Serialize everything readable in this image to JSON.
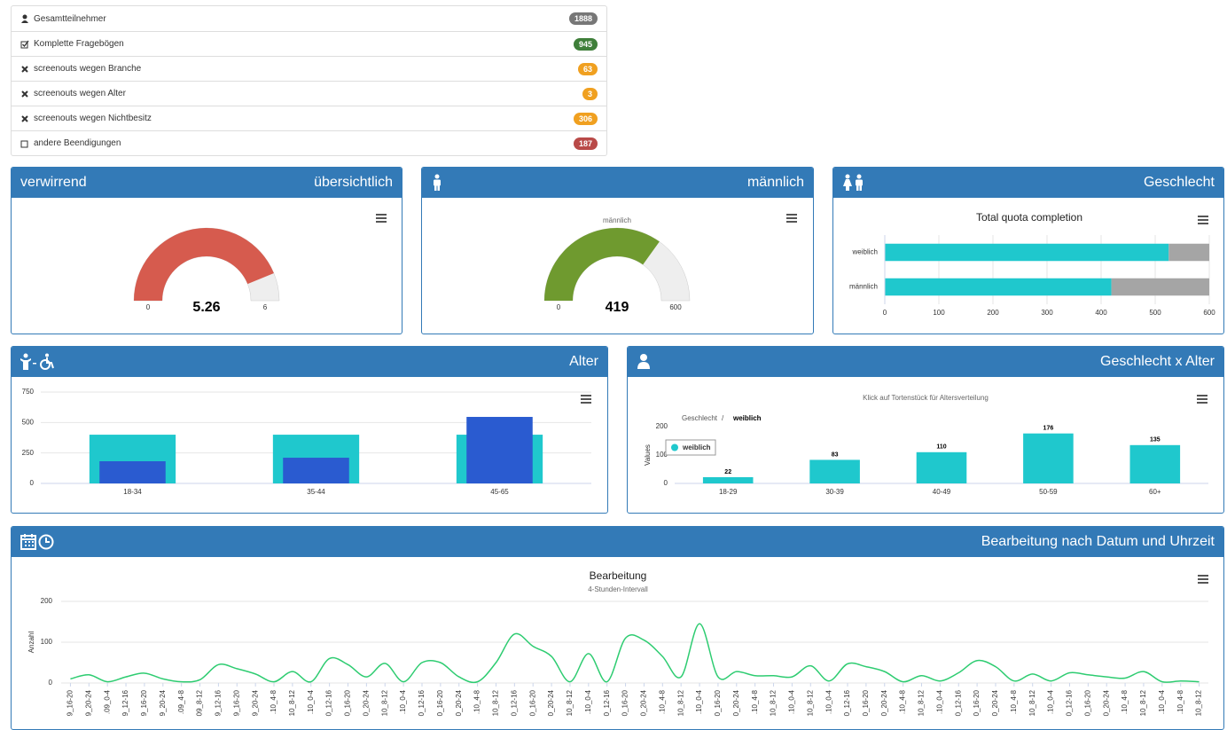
{
  "stats": [
    {
      "label": "Gesamtteilnehmer",
      "count": 1888,
      "color": "#777777"
    },
    {
      "label": "Komplette Fragebögen",
      "count": 945,
      "color": "#3f7f3a"
    },
    {
      "label": "screenouts wegen Branche",
      "count": 63,
      "color": "#f0a020"
    },
    {
      "label": "screenouts wegen Alter",
      "count": 3,
      "color": "#f0a020"
    },
    {
      "label": "screenouts wegen Nichtbesitz",
      "count": 306,
      "color": "#f0a020"
    },
    {
      "label": "andere Beendigungen",
      "count": 187,
      "color": "#b94a48"
    }
  ],
  "headers": [
    "verwirrend",
    "übersichtlich",
    "männlich",
    "Geschlecht",
    "Alter",
    "Geschlecht x Alter",
    "Bearbeitung nach Datum und Uhrzeit"
  ],
  "chart_data": [
    {
      "type": "gauge",
      "values": [
        5.26
      ],
      "ylim": [
        0,
        6
      ],
      "yticks": [
        0,
        6
      ],
      "color": "#d65b4e"
    },
    {
      "type": "gauge",
      "title": "männlich",
      "values": [
        419
      ],
      "ylim": [
        0,
        600
      ],
      "yticks": [
        0,
        600
      ],
      "color": "#6f9a2f"
    },
    {
      "type": "bar",
      "horizontal": true,
      "stacked": true,
      "title": "Total quota completion",
      "categories": [
        "weiblich",
        "männlich"
      ],
      "series": [
        {
          "color": "#1fc8cd",
          "values": [
            525,
            419
          ]
        },
        {
          "color": "#a5a5a5",
          "values": [
            75,
            181
          ]
        }
      ],
      "xlim": [
        0,
        600
      ],
      "xticks": [
        0,
        100,
        200,
        300,
        400,
        500,
        600
      ],
      "grid": true
    },
    {
      "type": "bar",
      "overlap": true,
      "categories": [
        "18-34",
        "35-44",
        "45-65"
      ],
      "series": [
        {
          "color": "#1fc8cd",
          "values": [
            400,
            400,
            400
          ]
        },
        {
          "color": "#2a5bd0",
          "values": [
            182,
            211,
            546
          ]
        }
      ],
      "ylim": [
        0,
        750
      ],
      "yticks": [
        0,
        250,
        500,
        750
      ],
      "grid": true
    },
    {
      "type": "bar",
      "subtitle": "Klick auf Tortenstück für Altersverteilung",
      "breadcrumb": [
        "Geschlecht",
        "/",
        "weiblich"
      ],
      "ylabel": "Values",
      "categories": [
        "18-29",
        "30-39",
        "40-49",
        "50-59",
        "60+"
      ],
      "series": [
        {
          "name": "weiblich",
          "color": "#1fc8cd",
          "values": [
            22,
            83,
            110,
            176,
            135
          ]
        }
      ],
      "ylim": [
        0,
        200
      ],
      "yticks": [
        0,
        100,
        200
      ],
      "data_labels": true,
      "grid": false
    },
    {
      "type": "line",
      "title": "Bearbeitung",
      "subtitle": "4-Stunden-Intervall",
      "ylabel": "Anzahl",
      "color": "#2ecc71",
      "grid": true,
      "ylim": [
        0,
        200
      ],
      "yticks": [
        0,
        100,
        200
      ],
      "categories": [
        "9_16-20",
        "9_20-24",
        ".09_0-4",
        "9_12-16",
        "9_16-20",
        "9_20-24",
        ".09_4-8",
        "09_8-12",
        "9_12-16",
        "9_16-20",
        "9_20-24",
        ".10_4-8",
        "10_8-12",
        ".10_0-4",
        "0_12-16",
        "0_16-20",
        "0_20-24",
        "10_8-12",
        ".10_0-4",
        "0_12-16",
        "0_16-20",
        "0_20-24",
        ".10_4-8",
        "10_8-12",
        "0_12-16",
        "0_16-20",
        "0_20-24",
        "10_8-12",
        ".10_0-4",
        "0_12-16",
        "0_16-20",
        "0_20-24",
        ".10_4-8",
        "10_8-12",
        ".10_0-4",
        "0_16-20",
        "0_20-24",
        ".10_4-8",
        "10_8-12",
        ".10_0-4",
        "10_8-12",
        ".10_0-4",
        "0_12-16",
        "0_16-20",
        "0_20-24",
        ".10_4-8",
        "10_8-12",
        ".10_0-4",
        "0_12-16",
        "0_16-20",
        "0_20-24",
        ".10_4-8",
        "10_8-12",
        ".10_0-4",
        "0_12-16",
        "0_16-20",
        "0_20-24",
        ".10_4-8",
        "10_8-12",
        ".10_0-4",
        ".10_4-8",
        "10_8-12"
      ],
      "values": [
        10,
        20,
        3,
        15,
        24,
        10,
        3,
        8,
        45,
        35,
        22,
        3,
        28,
        3,
        60,
        45,
        15,
        48,
        3,
        50,
        50,
        15,
        3,
        50,
        120,
        90,
        65,
        3,
        72,
        3,
        110,
        105,
        65,
        15,
        145,
        15,
        28,
        18,
        18,
        15,
        42,
        5,
        47,
        40,
        28,
        3,
        18,
        5,
        25,
        55,
        40,
        5,
        22,
        5,
        25,
        20,
        15,
        12,
        28,
        3,
        5,
        3
      ]
    }
  ]
}
